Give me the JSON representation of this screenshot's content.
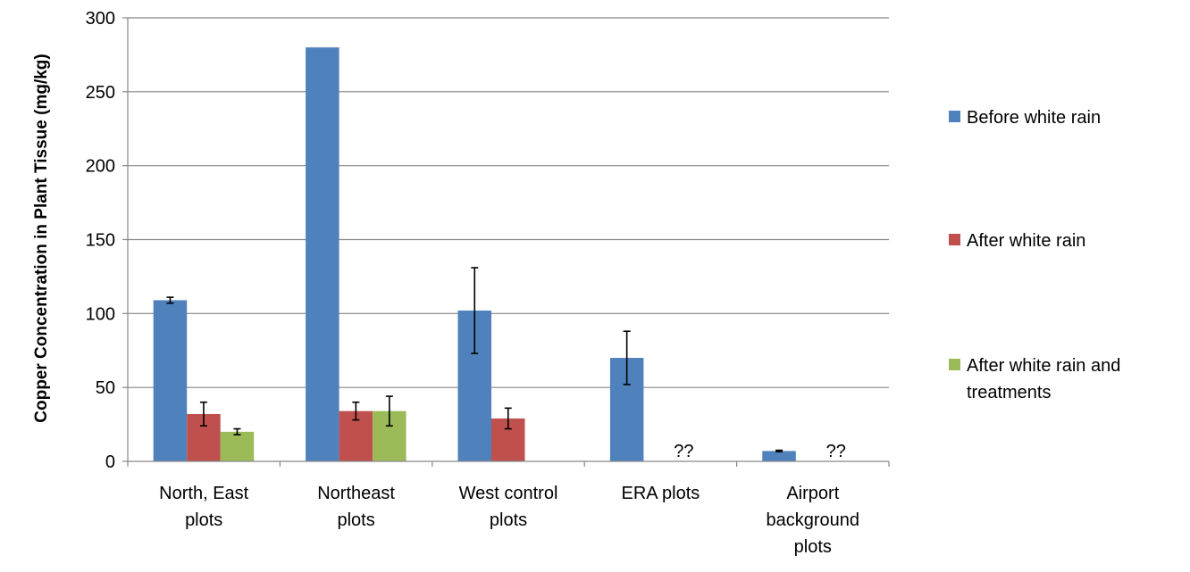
{
  "chart_data": {
    "type": "bar",
    "title": "",
    "xlabel": "",
    "ylabel": "Copper Concentration in Plant Tissue (mg/kg)",
    "ylim": [
      0,
      300
    ],
    "yticks": [
      0,
      50,
      100,
      150,
      200,
      250,
      300
    ],
    "grid": true,
    "legend_position": "right",
    "categories": [
      [
        "North, East",
        "plots"
      ],
      [
        "Northeast",
        "plots"
      ],
      [
        "West control",
        "plots"
      ],
      [
        "ERA plots"
      ],
      [
        "Airport",
        "background",
        "plots"
      ]
    ],
    "series": [
      {
        "name": "Before white rain",
        "legend_lines": [
          "Before white rain"
        ],
        "color": "#4F81BD",
        "values": [
          109,
          280,
          102,
          70,
          7
        ],
        "errors": [
          2,
          null,
          29,
          18,
          0.5
        ]
      },
      {
        "name": "After white rain",
        "legend_lines": [
          "After white rain"
        ],
        "color": "#C0504D",
        "values": [
          32,
          34,
          29,
          null,
          null
        ],
        "errors": [
          8,
          6,
          7,
          null,
          null
        ]
      },
      {
        "name": "After white rain and treatments",
        "legend_lines": [
          "After white rain and",
          "treatments"
        ],
        "color": "#9BBB59",
        "values": [
          20,
          34,
          null,
          null,
          null
        ],
        "errors": [
          2,
          10,
          null,
          null,
          null
        ]
      }
    ],
    "annotations": [
      {
        "category_index": 3,
        "text": "??"
      },
      {
        "category_index": 4,
        "text": "??"
      }
    ]
  }
}
